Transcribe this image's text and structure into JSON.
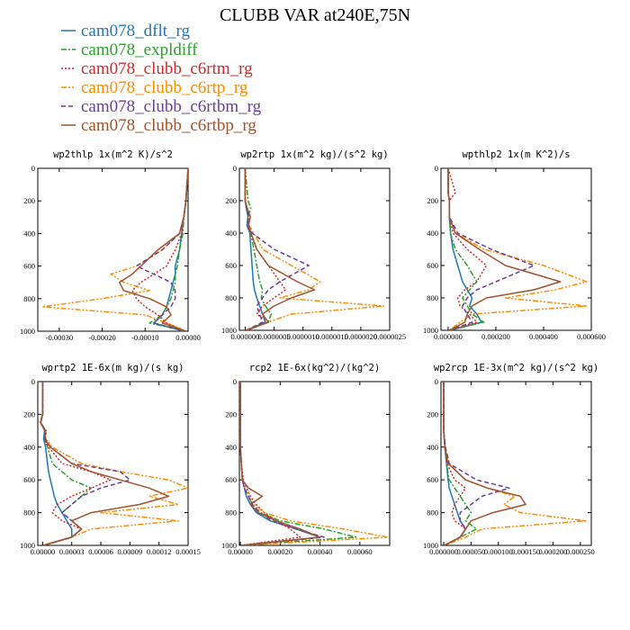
{
  "figure_title": "CLUBB VAR at240E,75N",
  "colors": {
    "cam078_dflt_rg": "#1f77b4",
    "cam078_expldiff": "#2ca02c",
    "cam078_clubb_c6rtm_rg": "#d62728",
    "cam078_clubb_c6rtp_rg": "#ff8c00",
    "cam078_clubb_c6rtbm_rg": "#6a3d9a",
    "cam078_clubb_c6rtbp_rg": "#a0522d"
  },
  "legend": [
    {
      "label": "cam078_dflt_rg",
      "color": "#1f77b4",
      "dash": "none"
    },
    {
      "label": "cam078_expldiff",
      "color": "#2ca02c",
      "dash": "6,2,2,2"
    },
    {
      "label": "cam078_clubb_c6rtm_rg",
      "color": "#d62728",
      "dash": "2,2"
    },
    {
      "label": "cam078_clubb_c6rtp_rg",
      "color": "#ff8c00",
      "dash": "6,2,2,2,2,2"
    },
    {
      "label": "cam078_clubb_c6rtbm_rg",
      "color": "#6a3d9a",
      "dash": "5,3"
    },
    {
      "label": "cam078_clubb_c6rtbp_rg",
      "color": "#a0522d",
      "dash": "none"
    }
  ],
  "chart_data": [
    {
      "type": "line",
      "title": "wp2thlp  1x(m^2 K)/s^2",
      "xlim": [
        -0.00035,
        0.0
      ],
      "ylim": [
        0,
        1000
      ],
      "y_reversed": true,
      "xticks": [
        "-0.00030",
        "-0.00020",
        "-0.00010",
        "0.00000"
      ],
      "xtick_values": [
        -0.0003,
        -0.0002,
        -0.0001,
        0.0
      ],
      "yticks": [
        "0",
        "200",
        "400",
        "600",
        "800",
        "1000"
      ],
      "y": [
        0,
        200,
        300,
        400,
        500,
        600,
        650,
        700,
        750,
        800,
        850,
        900,
        950,
        1000
      ],
      "series": [
        {
          "values": [
            0,
            -5e-06,
            -1e-05,
            -1.5e-05,
            -2e-05,
            -3e-05,
            -3e-05,
            -3.5e-05,
            -4e-05,
            -4.5e-05,
            -5e-05,
            -6e-05,
            -8e-05,
            -1e-05
          ]
        },
        {
          "values": [
            0,
            -5e-06,
            -1e-05,
            -1.2e-05,
            -2e-05,
            -2.5e-05,
            -3e-05,
            -3e-05,
            -3.5e-05,
            -4e-05,
            -5e-05,
            -6e-05,
            -9e-05,
            -5e-06
          ]
        },
        {
          "values": [
            0,
            -5e-06,
            -1e-05,
            -1.5e-05,
            -3e-05,
            -5e-05,
            -8e-05,
            -0.00011,
            -0.00013,
            -0.00012,
            -0.0001,
            -7e-05,
            -5e-05,
            -5e-06
          ]
        },
        {
          "values": [
            0,
            -5e-06,
            -1e-05,
            -2e-05,
            -6e-05,
            -0.00012,
            -0.00018,
            -0.00015,
            -9e-05,
            -0.0002,
            -0.00034,
            -0.0001,
            -5e-05,
            -5e-06
          ]
        },
        {
          "values": [
            0,
            -5e-06,
            -1e-05,
            -2e-05,
            -6e-05,
            -0.00012,
            -8e-05,
            -4e-05,
            -3e-05,
            -3e-05,
            -4e-05,
            -6e-05,
            -8e-05,
            -5e-06
          ]
        },
        {
          "values": [
            0,
            -5e-06,
            -1e-05,
            -2e-05,
            -7e-05,
            -0.00011,
            -0.00013,
            -0.00016,
            -0.00015,
            -9e-05,
            -5e-05,
            -4e-05,
            -6e-05,
            -5e-06
          ]
        }
      ]
    },
    {
      "type": "line",
      "title": "wp2rtp  1x(m^2 kg)/(s^2 kg)",
      "xlim": [
        -1e-07,
        2.5e-06
      ],
      "ylim": [
        0,
        1000
      ],
      "y_reversed": true,
      "xticks": [
        "0.000000",
        "0.0000005",
        "0.0000010",
        "0.0000015",
        "0.0000020",
        "0.0000025"
      ],
      "xtick_values": [
        0,
        5e-07,
        1e-06,
        1.5e-06,
        2e-06,
        2.5e-06
      ],
      "yticks": [
        "0",
        "200",
        "400",
        "600",
        "800",
        "1000"
      ],
      "y": [
        0,
        200,
        250,
        300,
        350,
        400,
        500,
        600,
        700,
        750,
        800,
        850,
        900,
        950,
        1000
      ],
      "series": [
        {
          "values": [
            0,
            0,
            2e-08,
            5e-08,
            3e-08,
            8e-08,
            1e-07,
            1.2e-07,
            1.4e-07,
            1.6e-07,
            2e-07,
            2.5e-07,
            3e-07,
            3.5e-07,
            2e-08
          ]
        },
        {
          "values": [
            0,
            5e-08,
            1e-07,
            4e-08,
            6e-08,
            1e-07,
            1.5e-07,
            2e-07,
            2.5e-07,
            3e-07,
            2.8e-07,
            3.5e-07,
            4.5e-07,
            4e-07,
            2e-08
          ]
        },
        {
          "values": [
            0,
            0,
            3e-08,
            6e-08,
            4e-08,
            1e-07,
            2e-07,
            4e-07,
            6e-07,
            7e-07,
            5e-07,
            3e-07,
            2e-07,
            4e-07,
            2e-08
          ]
        },
        {
          "values": [
            0,
            0,
            4e-08,
            8e-08,
            6e-08,
            1.5e-07,
            3e-07,
            8e-07,
            1.3e-06,
            1.1e-06,
            6e-07,
            2.4e-06,
            8e-07,
            4e-07,
            2e-08
          ]
        },
        {
          "values": [
            0,
            0,
            3e-08,
            6e-08,
            4e-08,
            1.2e-07,
            5e-07,
            1.1e-06,
            6e-07,
            4e-07,
            3e-07,
            2e-07,
            2.5e-07,
            3e-07,
            2e-08
          ]
        },
        {
          "values": [
            0,
            0,
            4e-08,
            9e-08,
            6e-08,
            1e-07,
            2e-07,
            4e-07,
            9e-07,
            1.2e-06,
            8e-07,
            5e-07,
            3e-07,
            4e-07,
            2e-08
          ]
        }
      ]
    },
    {
      "type": "line",
      "title": "wpthlp2  1x(m K^2)/s",
      "xlim": [
        -3e-05,
        0.0006
      ],
      "ylim": [
        0,
        1000
      ],
      "y_reversed": true,
      "xticks": [
        "0.000000",
        "0.000200",
        "0.000400",
        "0.000600"
      ],
      "xtick_values": [
        0,
        0.0002,
        0.0004,
        0.0006
      ],
      "yticks": [
        "0",
        "200",
        "400",
        "600",
        "800",
        "1000"
      ],
      "y": [
        0,
        150,
        200,
        300,
        400,
        500,
        600,
        700,
        750,
        800,
        850,
        900,
        950,
        1000
      ],
      "series": [
        {
          "values": [
            0,
            0,
            5e-06,
            5e-06,
            1e-05,
            2e-05,
            4e-05,
            6e-05,
            8e-05,
            0.0001,
            9e-05,
            0.00012,
            0.00014,
            5e-06
          ]
        },
        {
          "values": [
            0,
            0,
            5e-06,
            5e-06,
            1e-05,
            3e-05,
            8e-05,
            0.00012,
            9e-05,
            6e-05,
            8e-05,
            0.0001,
            0.00015,
            5e-06
          ]
        },
        {
          "values": [
            0,
            3e-05,
            5e-06,
            5e-06,
            2e-05,
            8e-05,
            0.00016,
            0.00012,
            7e-05,
            4e-05,
            5e-05,
            9e-05,
            0.00012,
            5e-06
          ]
        },
        {
          "values": [
            0,
            0,
            5e-06,
            5e-06,
            3e-05,
            0.00015,
            0.0004,
            0.00058,
            0.00045,
            0.00024,
            0.00058,
            0.0001,
            5e-05,
            5e-06
          ]
        },
        {
          "values": [
            0,
            0,
            5e-06,
            5e-06,
            4e-05,
            0.00018,
            0.00036,
            0.0002,
            0.00012,
            8e-05,
            6e-05,
            8e-05,
            0.0001,
            5e-06
          ]
        },
        {
          "values": [
            0,
            0,
            5e-06,
            5e-06,
            3e-05,
            0.00013,
            0.00024,
            0.00047,
            0.00036,
            0.00016,
            0.0001,
            8e-05,
            7e-05,
            5e-06
          ]
        }
      ]
    },
    {
      "type": "line",
      "title": "wprtp2  1E-6x(m kg)/(s kg)",
      "xlim": [
        -5e-06,
        0.00015
      ],
      "ylim": [
        0,
        1000
      ],
      "y_reversed": true,
      "xticks": [
        "0.00000",
        "0.00003",
        "0.00006",
        "0.00009",
        "0.00012",
        "0.00015"
      ],
      "xtick_values": [
        0,
        3e-05,
        6e-05,
        9e-05,
        0.00012,
        0.00015
      ],
      "yticks": [
        "0",
        "200",
        "400",
        "600",
        "800",
        "1000"
      ],
      "y": [
        0,
        200,
        250,
        300,
        350,
        400,
        500,
        550,
        600,
        650,
        700,
        750,
        800,
        850,
        900,
        950,
        1000
      ],
      "series": [
        {
          "values": [
            0,
            0,
            -2e-06,
            2e-06,
            1e-06,
            3e-06,
            5e-06,
            6e-06,
            8e-06,
            1e-05,
            1.2e-05,
            1.5e-05,
            2e-05,
            2.5e-05,
            3e-05,
            3e-05,
            5e-07
          ]
        },
        {
          "values": [
            0,
            0,
            -3e-06,
            3e-06,
            2e-06,
            5e-06,
            1e-05,
            2e-05,
            3e-05,
            5e-05,
            4e-05,
            3e-05,
            2e-05,
            3e-05,
            4e-05,
            3e-05,
            5e-07
          ]
        },
        {
          "values": [
            0,
            0,
            -2e-06,
            3e-06,
            2e-06,
            6e-06,
            2e-05,
            5e-05,
            7e-05,
            5e-05,
            3e-05,
            1.5e-05,
            1e-05,
            2e-05,
            4e-05,
            3e-05,
            5e-07
          ]
        },
        {
          "values": [
            0,
            0,
            -3e-06,
            4e-06,
            3e-06,
            1e-05,
            4e-05,
            8e-05,
            0.00013,
            0.00015,
            0.00011,
            0.00014,
            6e-05,
            0.00014,
            5e-05,
            3e-05,
            5e-07
          ]
        },
        {
          "values": [
            0,
            0,
            -2e-06,
            3e-06,
            3e-06,
            8e-06,
            3e-05,
            8e-05,
            9e-05,
            6e-05,
            4e-05,
            3e-05,
            2e-05,
            3e-05,
            4e-05,
            3e-05,
            5e-07
          ]
        },
        {
          "values": [
            0,
            0,
            -2e-06,
            3e-06,
            2e-06,
            8e-06,
            3e-05,
            5e-05,
            8e-05,
            0.00011,
            0.00013,
            0.0001,
            5e-05,
            3e-05,
            4e-05,
            3e-05,
            5e-07
          ]
        }
      ]
    },
    {
      "type": "line",
      "title": "rcp2  1E-6x(kg^2)/(kg^2)",
      "xlim": [
        -5e-06,
        0.00075
      ],
      "ylim": [
        0,
        1000
      ],
      "y_reversed": true,
      "xticks": [
        "0.00000",
        "0.00020",
        "0.00040",
        "0.00060"
      ],
      "xtick_values": [
        0,
        0.0002,
        0.0004,
        0.0006
      ],
      "yticks": [
        "0",
        "200",
        "400",
        "600",
        "800",
        "1000"
      ],
      "y": [
        0,
        400,
        500,
        600,
        650,
        700,
        750,
        800,
        850,
        900,
        950,
        1000
      ],
      "series": [
        {
          "values": [
            0,
            0,
            5e-06,
            1e-05,
            2e-05,
            3e-05,
            5e-05,
            8e-05,
            0.00015,
            0.00028,
            0.0004,
            5e-06
          ]
        },
        {
          "values": [
            0,
            0,
            5e-06,
            1e-05,
            2e-05,
            4e-05,
            6e-05,
            0.0001,
            0.0002,
            0.00042,
            0.00058,
            5e-06
          ]
        },
        {
          "values": [
            0,
            0,
            5e-06,
            1.5e-05,
            3e-05,
            5e-05,
            8e-05,
            0.00012,
            0.00018,
            0.00025,
            0.0003,
            5e-06
          ]
        },
        {
          "values": [
            0,
            0,
            5e-06,
            1e-05,
            2e-05,
            4e-05,
            7e-05,
            0.00012,
            0.00025,
            0.00052,
            0.00074,
            5e-06
          ]
        },
        {
          "values": [
            0,
            0,
            5e-06,
            1e-05,
            2e-05,
            4e-05,
            6e-05,
            0.0001,
            0.00016,
            0.00028,
            0.00042,
            5e-06
          ]
        },
        {
          "values": [
            0,
            0,
            5e-06,
            1e-05,
            4e-05,
            0.00011,
            5e-05,
            9e-05,
            0.00018,
            0.0003,
            0.0004,
            5e-06
          ]
        }
      ]
    },
    {
      "type": "line",
      "title": "wp2rcp  1E-3x(m^2 kg)/(s^2 kg)",
      "xlim": [
        -5e-06,
        0.00027
      ],
      "ylim": [
        0,
        1000
      ],
      "y_reversed": true,
      "xticks": [
        "0.000000",
        "0.000050",
        "0.000100",
        "0.000150",
        "0.000200",
        "0.000250"
      ],
      "xtick_values": [
        0,
        5e-05,
        0.0001,
        0.00015,
        0.0002,
        0.00025
      ],
      "yticks": [
        "0",
        "200",
        "400",
        "600",
        "800",
        "1000"
      ],
      "y": [
        0,
        300,
        400,
        500,
        600,
        650,
        700,
        750,
        800,
        850,
        900,
        950,
        1000
      ],
      "series": [
        {
          "values": [
            0,
            0,
            2e-06,
            5e-06,
            8e-06,
            1e-05,
            1.5e-05,
            2e-05,
            2.5e-05,
            3e-05,
            4e-05,
            3e-05,
            1e-06
          ]
        },
        {
          "values": [
            0,
            0,
            2e-06,
            5e-06,
            1e-05,
            2e-05,
            3e-05,
            4e-05,
            5e-05,
            4e-05,
            6e-05,
            3e-05,
            1e-06
          ]
        },
        {
          "values": [
            0,
            0,
            2e-06,
            6e-06,
            2e-05,
            4e-05,
            3e-05,
            2e-05,
            1.5e-05,
            2e-05,
            4e-05,
            3e-05,
            1e-06
          ]
        },
        {
          "values": [
            0,
            0,
            3e-06,
            1e-05,
            4e-05,
            8e-05,
            0.00013,
            0.00011,
            0.00014,
            0.00026,
            7e-05,
            4e-05,
            1e-06
          ]
        },
        {
          "values": [
            0,
            0,
            3e-06,
            1e-05,
            6e-05,
            0.00012,
            7e-05,
            5e-05,
            3e-05,
            3e-05,
            4e-05,
            3e-05,
            1e-06
          ]
        },
        {
          "values": [
            0,
            0,
            2e-06,
            8e-06,
            4e-05,
            8e-05,
            0.00014,
            0.00015,
            9e-05,
            5e-05,
            4e-05,
            3e-05,
            1e-06
          ]
        }
      ]
    }
  ]
}
